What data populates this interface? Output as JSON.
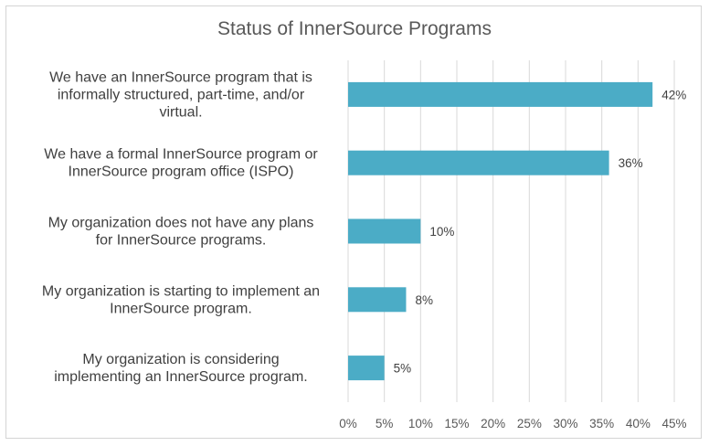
{
  "chart_data": {
    "type": "bar",
    "orientation": "horizontal",
    "title": "Status of InnerSource Programs",
    "categories": [
      [
        "We have an InnerSource program that is",
        "informally structured, part-time, and/or",
        "virtual."
      ],
      [
        "We have a  formal InnerSource program or",
        "InnerSource program office (ISPO)"
      ],
      [
        "My organization does not have any plans",
        "for InnerSource programs."
      ],
      [
        "My organization is starting to implement an",
        "InnerSource program."
      ],
      [
        "My organization is considering",
        "implementing an InnerSource program."
      ]
    ],
    "values": [
      42,
      36,
      10,
      8,
      5
    ],
    "data_labels": [
      "42%",
      "36%",
      "10%",
      "8%",
      "5%"
    ],
    "xlim": [
      0,
      45
    ],
    "xticks": [
      "0%",
      "5%",
      "10%",
      "15%",
      "20%",
      "25%",
      "30%",
      "35%",
      "40%",
      "45%"
    ],
    "grid": true,
    "legend": "none",
    "bar_color": "#4bacc6"
  }
}
